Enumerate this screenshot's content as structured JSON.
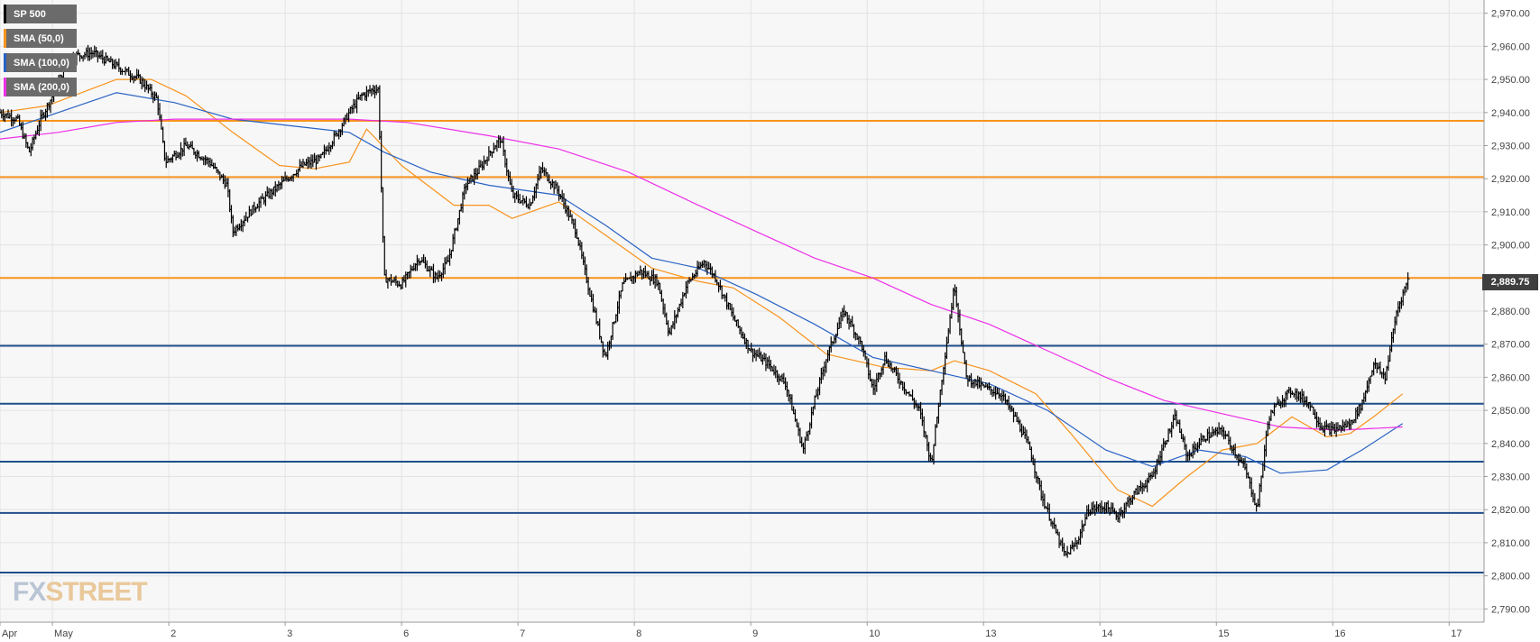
{
  "legend": [
    {
      "label": "SP 500",
      "color": "#000000"
    },
    {
      "label": "SMA (50,0)",
      "color": "#f7931e"
    },
    {
      "label": "SMA (100,0)",
      "color": "#2962c4"
    },
    {
      "label": "SMA (200,0)",
      "color": "#ee2fe8"
    }
  ],
  "logo": {
    "part1": "FX",
    "part2": "STREET"
  },
  "chart_data": {
    "type": "line",
    "ylim": [
      2786,
      2974
    ],
    "y_ticks": [
      2790,
      2800,
      2810,
      2820,
      2830,
      2840,
      2850,
      2860,
      2870,
      2880,
      2890,
      2900,
      2910,
      2920,
      2930,
      2940,
      2950,
      2960,
      2970
    ],
    "y_tick_labels": [
      "2,790.00",
      "2,800.00",
      "2,810.00",
      "2,820.00",
      "2,830.00",
      "2,840.00",
      "2,850.00",
      "2,860.00",
      "2,870.00",
      "2,880.00",
      "2,890.00",
      "2,900.00",
      "2,910.00",
      "2,920.00",
      "2,930.00",
      "2,940.00",
      "2,950.00",
      "2,960.00",
      "2,970.00"
    ],
    "x_ticks": [
      {
        "label": "Apr",
        "t": 0
      },
      {
        "label": "May",
        "t": 0.45
      },
      {
        "label": "2",
        "t": 1.45
      },
      {
        "label": "3",
        "t": 2.45
      },
      {
        "label": "6",
        "t": 3.45
      },
      {
        "label": "7",
        "t": 4.45
      },
      {
        "label": "8",
        "t": 5.45
      },
      {
        "label": "9",
        "t": 6.45
      },
      {
        "label": "10",
        "t": 7.45
      },
      {
        "label": "13",
        "t": 8.45
      },
      {
        "label": "14",
        "t": 9.45
      },
      {
        "label": "15",
        "t": 10.45
      },
      {
        "label": "16",
        "t": 11.45
      },
      {
        "label": "17",
        "t": 12.45
      }
    ],
    "xlim": [
      0,
      12.75
    ],
    "last_price": 2889.75,
    "last_price_label": "2,889.75",
    "resistance_levels": [
      2937.5,
      2920.5,
      2890
    ],
    "support_levels": [
      2869.5,
      2852,
      2834.5,
      2819,
      2801
    ],
    "series": [
      {
        "key": "price",
        "color": "#000000",
        "style": "bars",
        "points": [
          [
            0,
            2940
          ],
          [
            0.15,
            2938
          ],
          [
            0.25,
            2928
          ],
          [
            0.35,
            2938
          ],
          [
            0.45,
            2945
          ],
          [
            0.6,
            2957
          ],
          [
            0.8,
            2958
          ],
          [
            1.0,
            2954
          ],
          [
            1.2,
            2950
          ],
          [
            1.35,
            2944
          ],
          [
            1.42,
            2925
          ],
          [
            1.6,
            2930
          ],
          [
            1.8,
            2925
          ],
          [
            1.95,
            2918
          ],
          [
            2.0,
            2904
          ],
          [
            2.2,
            2912
          ],
          [
            2.4,
            2918
          ],
          [
            2.6,
            2924
          ],
          [
            2.75,
            2926
          ],
          [
            2.9,
            2934
          ],
          [
            3.0,
            2940
          ],
          [
            3.1,
            2945
          ],
          [
            3.2,
            2947
          ],
          [
            3.25,
            2947
          ],
          [
            3.3,
            2890
          ],
          [
            3.45,
            2888
          ],
          [
            3.6,
            2896
          ],
          [
            3.75,
            2890
          ],
          [
            3.85,
            2895
          ],
          [
            4.0,
            2918
          ],
          [
            4.1,
            2922
          ],
          [
            4.25,
            2930
          ],
          [
            4.3,
            2932
          ],
          [
            4.4,
            2915
          ],
          [
            4.55,
            2912
          ],
          [
            4.65,
            2923
          ],
          [
            4.8,
            2916
          ],
          [
            4.95,
            2904
          ],
          [
            5.05,
            2888
          ],
          [
            5.2,
            2866
          ],
          [
            5.35,
            2888
          ],
          [
            5.5,
            2892
          ],
          [
            5.65,
            2889
          ],
          [
            5.75,
            2873
          ],
          [
            5.9,
            2888
          ],
          [
            6.05,
            2895
          ],
          [
            6.15,
            2890
          ],
          [
            6.3,
            2878
          ],
          [
            6.45,
            2868
          ],
          [
            6.6,
            2864
          ],
          [
            6.75,
            2858
          ],
          [
            6.9,
            2838
          ],
          [
            7.0,
            2853
          ],
          [
            7.1,
            2866
          ],
          [
            7.25,
            2880
          ],
          [
            7.4,
            2870
          ],
          [
            7.5,
            2856
          ],
          [
            7.6,
            2866
          ],
          [
            7.75,
            2858
          ],
          [
            7.9,
            2850
          ],
          [
            8.0,
            2834
          ],
          [
            8.1,
            2862
          ],
          [
            8.2,
            2888
          ],
          [
            8.3,
            2860
          ],
          [
            8.45,
            2857
          ],
          [
            8.6,
            2855
          ],
          [
            8.75,
            2846
          ],
          [
            8.85,
            2838
          ],
          [
            8.95,
            2824
          ],
          [
            9.05,
            2815
          ],
          [
            9.15,
            2806
          ],
          [
            9.25,
            2810
          ],
          [
            9.35,
            2820
          ],
          [
            9.5,
            2821
          ],
          [
            9.6,
            2818
          ],
          [
            9.75,
            2825
          ],
          [
            9.9,
            2830
          ],
          [
            10.0,
            2840
          ],
          [
            10.1,
            2848
          ],
          [
            10.2,
            2836
          ],
          [
            10.35,
            2842
          ],
          [
            10.5,
            2844
          ],
          [
            10.6,
            2838
          ],
          [
            10.7,
            2832
          ],
          [
            10.8,
            2820
          ],
          [
            10.9,
            2848
          ],
          [
            11.0,
            2853
          ],
          [
            11.1,
            2856
          ],
          [
            11.25,
            2852
          ],
          [
            11.35,
            2845
          ],
          [
            11.45,
            2844
          ],
          [
            11.6,
            2846
          ],
          [
            11.7,
            2852
          ],
          [
            11.8,
            2864
          ],
          [
            11.9,
            2860
          ],
          [
            12.0,
            2880
          ],
          [
            12.05,
            2885
          ],
          [
            12.1,
            2890
          ]
        ]
      },
      {
        "key": "sma50",
        "color": "#f7931e",
        "style": "line",
        "points": [
          [
            0,
            2940
          ],
          [
            0.4,
            2942
          ],
          [
            0.7,
            2946
          ],
          [
            1.0,
            2950
          ],
          [
            1.3,
            2950
          ],
          [
            1.6,
            2945
          ],
          [
            2.0,
            2934
          ],
          [
            2.4,
            2924
          ],
          [
            2.7,
            2923
          ],
          [
            3.0,
            2925
          ],
          [
            3.15,
            2935
          ],
          [
            3.45,
            2924
          ],
          [
            3.9,
            2912
          ],
          [
            4.2,
            2912
          ],
          [
            4.4,
            2908
          ],
          [
            4.8,
            2913
          ],
          [
            5.2,
            2903
          ],
          [
            5.6,
            2893
          ],
          [
            6.0,
            2889
          ],
          [
            6.3,
            2887
          ],
          [
            6.7,
            2878
          ],
          [
            7.1,
            2867
          ],
          [
            7.6,
            2863
          ],
          [
            8.0,
            2862
          ],
          [
            8.2,
            2865
          ],
          [
            8.5,
            2862
          ],
          [
            8.9,
            2855
          ],
          [
            9.2,
            2843
          ],
          [
            9.6,
            2826
          ],
          [
            9.9,
            2821
          ],
          [
            10.2,
            2830
          ],
          [
            10.5,
            2838
          ],
          [
            10.8,
            2840
          ],
          [
            11.1,
            2848
          ],
          [
            11.4,
            2842
          ],
          [
            11.6,
            2843
          ],
          [
            11.8,
            2848
          ],
          [
            12.05,
            2855
          ]
        ]
      },
      {
        "key": "sma100",
        "color": "#2962c4",
        "style": "line",
        "points": [
          [
            0,
            2934
          ],
          [
            0.5,
            2940
          ],
          [
            1.0,
            2946
          ],
          [
            1.5,
            2943
          ],
          [
            2.0,
            2938
          ],
          [
            2.5,
            2936
          ],
          [
            3.0,
            2934
          ],
          [
            3.3,
            2928
          ],
          [
            3.7,
            2922
          ],
          [
            4.2,
            2918
          ],
          [
            4.8,
            2915
          ],
          [
            5.2,
            2906
          ],
          [
            5.6,
            2896
          ],
          [
            6.0,
            2893
          ],
          [
            6.5,
            2885
          ],
          [
            7.0,
            2876
          ],
          [
            7.5,
            2866
          ],
          [
            8.0,
            2862
          ],
          [
            8.5,
            2858
          ],
          [
            9.0,
            2850
          ],
          [
            9.5,
            2838
          ],
          [
            9.9,
            2833
          ],
          [
            10.3,
            2838
          ],
          [
            10.7,
            2836
          ],
          [
            11.0,
            2831
          ],
          [
            11.4,
            2832
          ],
          [
            11.7,
            2838
          ],
          [
            12.05,
            2846
          ]
        ]
      },
      {
        "key": "sma200",
        "color": "#ee2fe8",
        "style": "line",
        "points": [
          [
            0,
            2932
          ],
          [
            0.5,
            2934
          ],
          [
            1.0,
            2937
          ],
          [
            1.5,
            2938
          ],
          [
            2.0,
            2938
          ],
          [
            2.5,
            2938
          ],
          [
            3.0,
            2938
          ],
          [
            3.5,
            2937
          ],
          [
            4.2,
            2933
          ],
          [
            4.8,
            2929
          ],
          [
            5.4,
            2922
          ],
          [
            6.0,
            2912
          ],
          [
            6.5,
            2904
          ],
          [
            7.0,
            2896
          ],
          [
            7.5,
            2890
          ],
          [
            8.0,
            2882
          ],
          [
            8.5,
            2876
          ],
          [
            9.0,
            2868
          ],
          [
            9.5,
            2860
          ],
          [
            10.0,
            2853
          ],
          [
            10.5,
            2849
          ],
          [
            11.0,
            2845
          ],
          [
            11.5,
            2844
          ],
          [
            12.05,
            2845
          ]
        ]
      }
    ]
  }
}
